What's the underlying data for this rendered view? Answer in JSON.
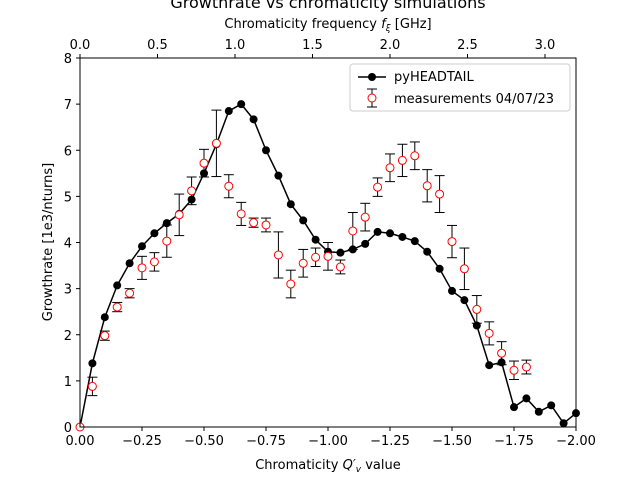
{
  "chart_data": {
    "type": "line",
    "title": "Growthrate vs chromaticity simulations",
    "xlabel_bottom": "Chromaticity Q′v value",
    "xlabel_top": "Chromaticity frequency fξ [GHz]",
    "ylabel": "Growthrate [1e3/nturns]",
    "xlim": [
      0.0,
      -2.0
    ],
    "ylim": [
      0,
      8
    ],
    "top_xlim": [
      0.0,
      3.2
    ],
    "xticks": [
      "0.00",
      "−0.25",
      "−0.50",
      "−0.75",
      "−1.00",
      "−1.25",
      "−1.50",
      "−1.75",
      "−2.00"
    ],
    "xtick_values": [
      0,
      -0.25,
      -0.5,
      -0.75,
      -1.0,
      -1.25,
      -1.5,
      -1.75,
      -2.0
    ],
    "yticks": [
      "0",
      "1",
      "2",
      "3",
      "4",
      "5",
      "6",
      "7",
      "8"
    ],
    "ytick_values": [
      0,
      1,
      2,
      3,
      4,
      5,
      6,
      7,
      8
    ],
    "top_xticks": [
      "0.0",
      "0.5",
      "1.0",
      "1.5",
      "2.0",
      "2.5",
      "3.0"
    ],
    "top_xtick_values": [
      0,
      0.5,
      1.0,
      1.5,
      2.0,
      2.5,
      3.0
    ],
    "grid": false,
    "legend_position": "top-right",
    "series": [
      {
        "name": "pyHEADTAIL",
        "style": "line-filled-marker",
        "color": "#000000",
        "x": [
          0.0,
          -0.05,
          -0.1,
          -0.15,
          -0.2,
          -0.25,
          -0.3,
          -0.35,
          -0.4,
          -0.45,
          -0.5,
          -0.55,
          -0.6,
          -0.65,
          -0.7,
          -0.75,
          -0.8,
          -0.85,
          -0.9,
          -0.95,
          -1.0,
          -1.05,
          -1.1,
          -1.15,
          -1.2,
          -1.25,
          -1.3,
          -1.35,
          -1.4,
          -1.45,
          -1.5,
          -1.55,
          -1.6,
          -1.65,
          -1.7,
          -1.75,
          -1.8,
          -1.85,
          -1.9,
          -1.95,
          -2.0
        ],
        "y": [
          0.0,
          1.38,
          2.38,
          3.07,
          3.55,
          3.92,
          4.2,
          4.42,
          4.62,
          4.93,
          5.5,
          6.13,
          6.85,
          7.0,
          6.67,
          6.0,
          5.45,
          4.83,
          4.48,
          4.06,
          3.8,
          3.78,
          3.85,
          3.97,
          4.23,
          4.2,
          4.12,
          4.03,
          3.8,
          3.43,
          2.95,
          2.75,
          2.2,
          1.34,
          1.4,
          0.43,
          0.62,
          0.33,
          0.47,
          0.08,
          0.3
        ]
      },
      {
        "name": "measurements 04/07/23",
        "style": "open-marker-errorbar",
        "color": "#ff0000",
        "x": [
          0.0,
          -0.05,
          -0.1,
          -0.15,
          -0.2,
          -0.25,
          -0.3,
          -0.35,
          -0.4,
          -0.45,
          -0.5,
          -0.55,
          -0.6,
          -0.65,
          -0.7,
          -0.75,
          -0.8,
          -0.85,
          -0.9,
          -0.95,
          -1.0,
          -1.05,
          -1.1,
          -1.15,
          -1.2,
          -1.25,
          -1.3,
          -1.35,
          -1.4,
          -1.45,
          -1.5,
          -1.55,
          -1.6,
          -1.65,
          -1.7,
          -1.75,
          -1.8
        ],
        "y": [
          0.0,
          0.88,
          1.98,
          2.6,
          2.9,
          3.45,
          3.58,
          4.03,
          4.6,
          5.12,
          5.72,
          6.15,
          5.22,
          4.62,
          4.43,
          4.38,
          3.73,
          3.1,
          3.55,
          3.68,
          3.7,
          3.47,
          4.25,
          4.55,
          5.2,
          5.62,
          5.78,
          5.88,
          5.23,
          5.05,
          4.02,
          3.43,
          2.55,
          2.03,
          1.6,
          1.23,
          1.3
        ],
        "err": [
          0.0,
          0.2,
          0.1,
          0.1,
          0.1,
          0.25,
          0.2,
          0.35,
          0.45,
          0.3,
          0.3,
          0.72,
          0.25,
          0.25,
          0.1,
          0.15,
          0.5,
          0.3,
          0.3,
          0.2,
          0.3,
          0.15,
          0.4,
          0.3,
          0.2,
          0.3,
          0.35,
          0.3,
          0.35,
          0.4,
          0.35,
          0.45,
          0.3,
          0.25,
          0.25,
          0.2,
          0.15
        ]
      }
    ]
  }
}
